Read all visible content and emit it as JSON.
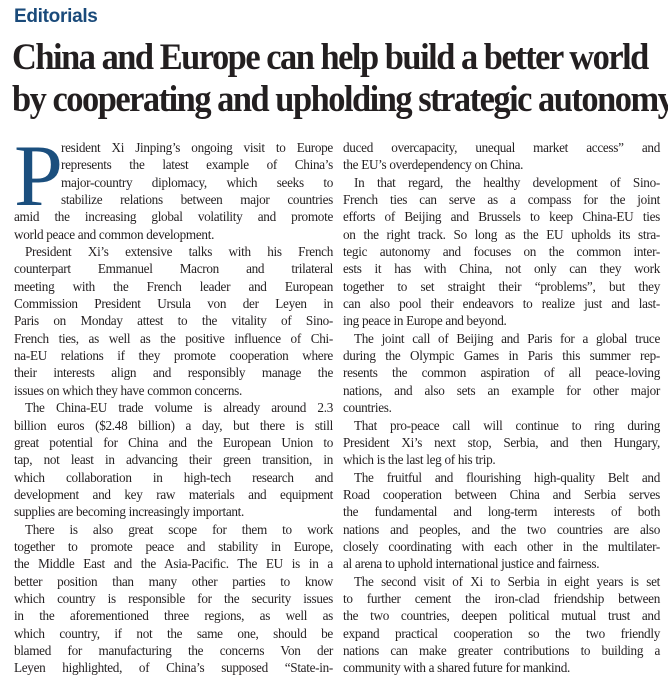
{
  "section_label": "Editorials",
  "headline": [
    "China and Europe can help build a better world",
    "by cooperating and upholding strategic autonomy"
  ],
  "colors": {
    "section": "#1a4a7a",
    "dropcap": "#1b4f7e",
    "text": "#231f20"
  },
  "drop_cap": "P",
  "left_column": [
    [
      "resident Xi Jinping’s ongoing visit to Europe",
      "represents the latest example of China’s",
      "major-country diplomacy, which seeks to",
      "stabilize relations between major countries",
      "amid the increasing global volatility and promote",
      "world peace and common development."
    ],
    [
      "President Xi’s extensive talks with his French",
      "counterpart Emmanuel Macron and trilateral",
      "meeting with the French leader and European",
      "Commission President Ursula von der Leyen in",
      "Paris on Monday attest to the vitality of Sino-",
      "French ties, as well as the positive influence of Chi-",
      "na-EU relations if they promote cooperation where",
      "their interests align and responsibly manage the",
      "issues on which they have common concerns."
    ],
    [
      "The China-EU trade volume is already around 2.3",
      "billion euros ($2.48 billion) a day, but there is still",
      "great potential for China and the European Union to",
      "tap, not least in advancing their green transition, in",
      "which collaboration in high-tech research and",
      "development and key raw materials and equipment",
      "supplies are becoming increasingly important."
    ],
    [
      "There is also great scope for them to work",
      "together to promote peace and stability in Europe,",
      "the Middle East and the Asia-Pacific. The EU is in a",
      "better position than many other parties to know",
      "which country is responsible for the security issues",
      "in the aforementioned three regions, as well as",
      "which country, if not the same one, should be",
      "blamed for manufacturing the concerns Von der",
      "Leyen highlighted, of China’s supposed “State-in-"
    ]
  ],
  "right_column": [
    [
      "duced overcapacity, unequal market access” and",
      "the EU’s overdependency on China."
    ],
    [
      "In that regard, the healthy development of Sino-",
      "French ties can serve as a compass for the joint",
      "efforts of Beijing and Brussels to keep China-EU ties",
      "on the right track. So long as the EU upholds its stra-",
      "tegic autonomy and focuses on the common inter-",
      "ests it has with China, not only can they work",
      "together to set straight their “problems”, but they",
      "can also pool their endeavors to realize just and last-",
      "ing peace in Europe and beyond."
    ],
    [
      "The joint call of Beijing and Paris for a global truce",
      "during the Olympic Games in Paris this summer rep-",
      "resents the common aspiration of all peace-loving",
      "nations, and also sets an example for other major",
      "countries."
    ],
    [
      "That pro-peace call will continue to ring during",
      "President Xi’s next stop, Serbia, and then Hungary,",
      "which is the last leg of his trip."
    ],
    [
      "The fruitful and flourishing high-quality Belt and",
      "Road cooperation between China and Serbia serves",
      "the fundamental and long-term interests of both",
      "nations and peoples, and the two countries are also",
      "closely coordinating with each other in the multilater-",
      "al arena to uphold international justice and fairness."
    ],
    [
      "The second visit of Xi to Serbia in eight years is set",
      "to further cement the iron-clad friendship between",
      "the two countries, deepen political mutual trust and",
      "expand practical cooperation so the two friendly",
      "nations can make greater contributions to building a",
      "community with a shared future for mankind."
    ]
  ]
}
